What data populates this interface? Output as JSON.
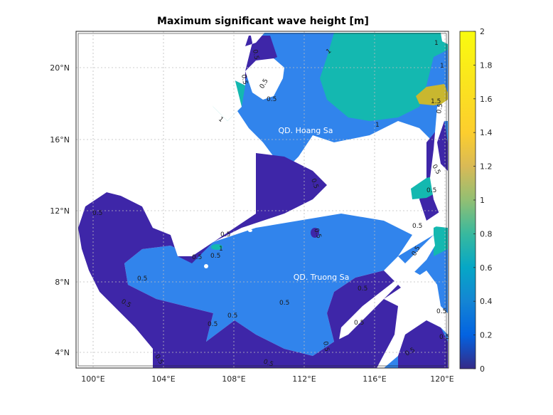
{
  "title": "Maximum significant wave height [m]",
  "axes": {
    "x_ticks": [
      "100°E",
      "104°E",
      "108°E",
      "112°E",
      "116°E",
      "120°E"
    ],
    "y_ticks": [
      "20°N",
      "16°N",
      "12°N",
      "8°N",
      "4°N"
    ]
  },
  "places": [
    "QD. Hoang Sa",
    "QD. Truong Sa"
  ],
  "colorbar": {
    "ticks": [
      "2",
      "1.8",
      "1.6",
      "1.4",
      "1.2",
      "1",
      "0.8",
      "0.6",
      "0.4",
      "0.2",
      "0"
    ],
    "min": 0,
    "max": 2
  },
  "contour_labels": [
    "0.5",
    "0.5",
    "0.5",
    "0.5",
    "1",
    "1",
    "1",
    "1",
    "1.5",
    "1",
    "0.5",
    "0.5",
    "0.5",
    "0.5",
    "0.5",
    "0.5",
    "0.5",
    "0.5",
    "0.5",
    "0.5",
    "0.5",
    "0.5",
    "0.5",
    "0.5",
    "1",
    "0.5",
    "0.5",
    "0.5",
    "0.5",
    "0.5",
    "0.5",
    "0.5",
    "0.5",
    "0.5",
    "0.5"
  ],
  "colors": {
    "level_0": "#3e26a8",
    "level_05": "#2f80ec",
    "level_1": "#14b8b0",
    "level_15": "#cbb931",
    "land": "#ffffff"
  }
}
